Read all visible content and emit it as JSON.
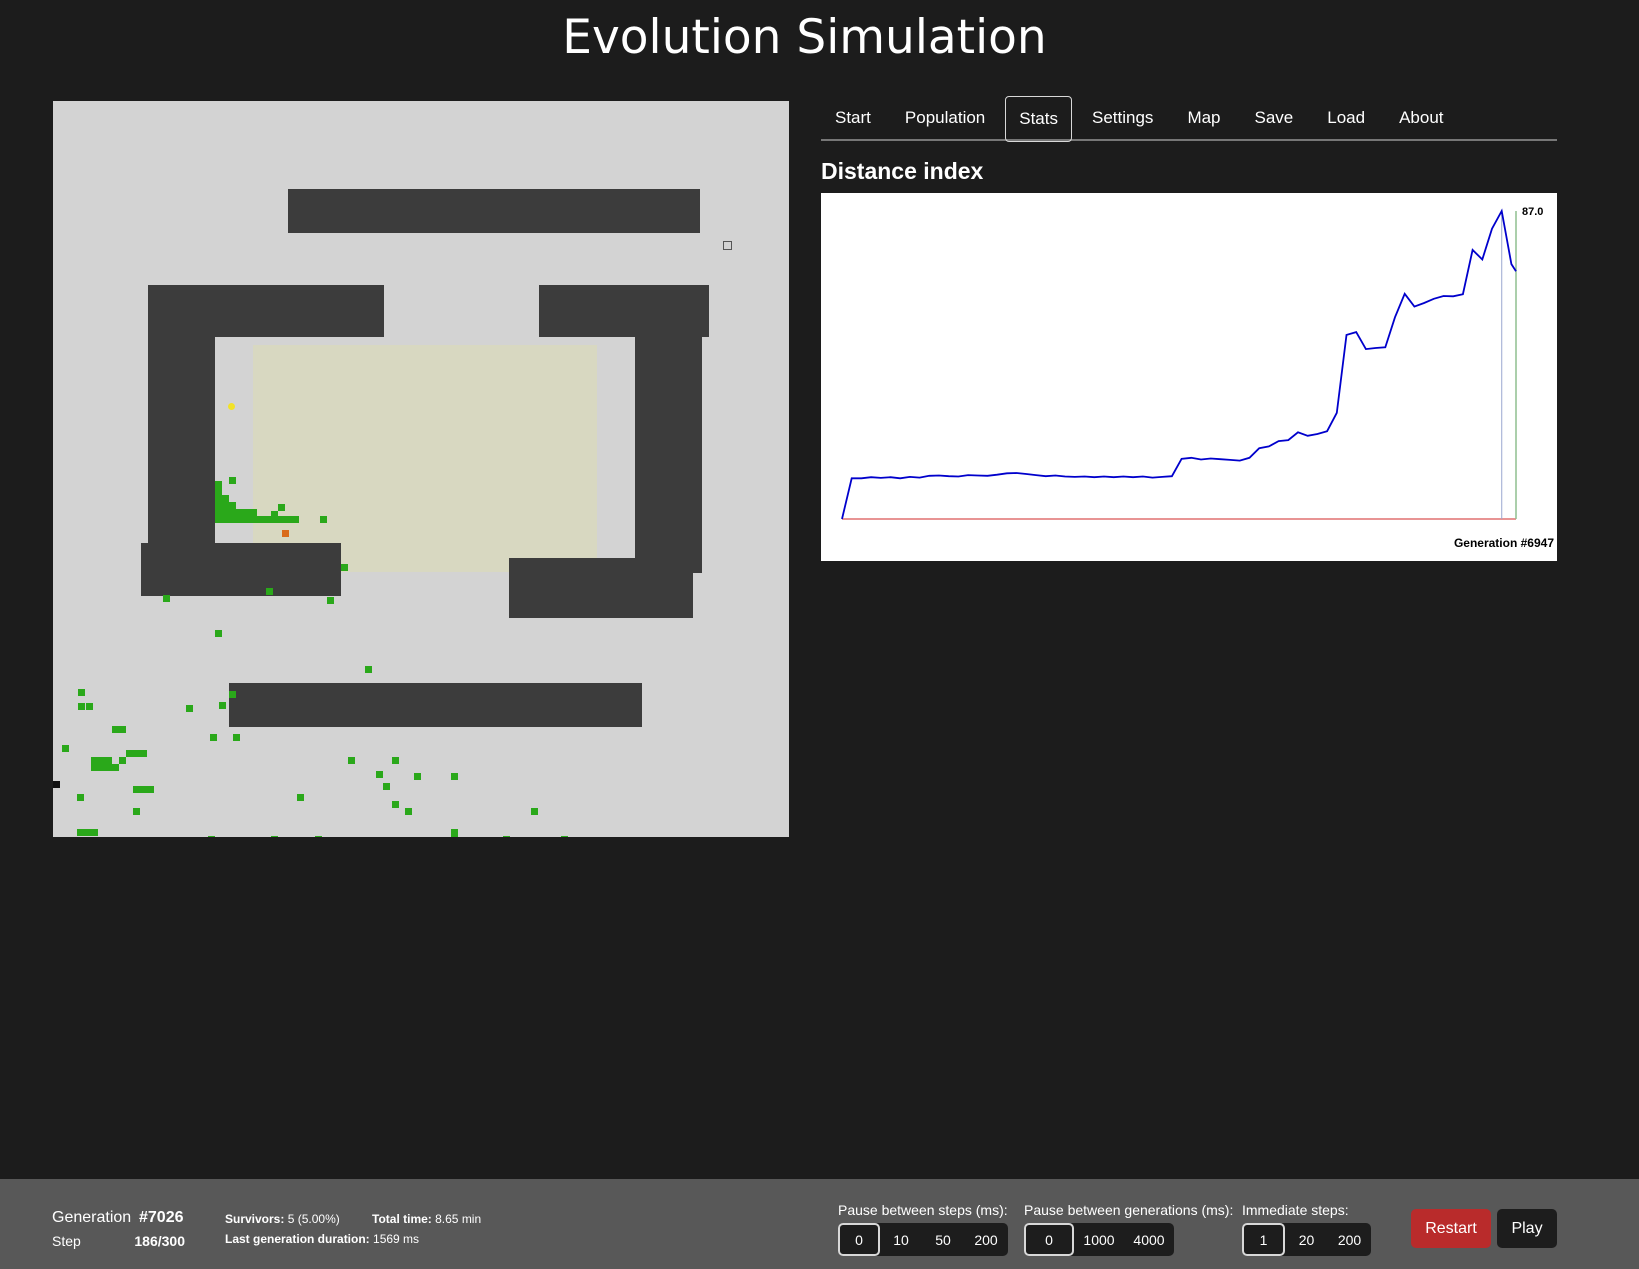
{
  "title": "Evolution Simulation",
  "tabs": [
    {
      "label": "Start"
    },
    {
      "label": "Population"
    },
    {
      "label": "Stats",
      "active": true
    },
    {
      "label": "Settings"
    },
    {
      "label": "Map"
    },
    {
      "label": "Save"
    },
    {
      "label": "Load"
    },
    {
      "label": "About"
    }
  ],
  "stats": {
    "section_title": "Distance index"
  },
  "chart_data": {
    "type": "line",
    "title": "Distance index",
    "x_end_label": "Generation #6947",
    "peak_label": "87.0",
    "x": [
      0,
      100,
      200,
      300,
      400,
      500,
      600,
      700,
      800,
      900,
      1000,
      1100,
      1200,
      1300,
      1400,
      1500,
      1600,
      1700,
      1800,
      1900,
      2000,
      2100,
      2200,
      2300,
      2400,
      2500,
      2600,
      2700,
      2800,
      2900,
      3000,
      3100,
      3200,
      3300,
      3400,
      3500,
      3600,
      3700,
      3800,
      3900,
      4000,
      4100,
      4200,
      4300,
      4400,
      4500,
      4600,
      4700,
      4800,
      4900,
      5000,
      5100,
      5200,
      5300,
      5400,
      5500,
      5600,
      5700,
      5800,
      5900,
      6000,
      6100,
      6200,
      6300,
      6400,
      6500,
      6600,
      6700,
      6800,
      6900,
      6947
    ],
    "series": [
      {
        "color": "#0000cc",
        "values": [
          0,
          11.5,
          11.5,
          11.8,
          11.6,
          11.8,
          11.5,
          11.9,
          11.7,
          12.2,
          12.3,
          12.1,
          12.0,
          12.4,
          12.3,
          12.2,
          12.5,
          12.9,
          13.0,
          12.7,
          12.4,
          12.1,
          12.3,
          12.0,
          11.9,
          12.0,
          11.8,
          12.0,
          11.8,
          12.0,
          11.8,
          12.0,
          11.7,
          11.9,
          12.1,
          17.0,
          17.3,
          16.8,
          17.1,
          16.9,
          16.7,
          16.5,
          17.3,
          20.0,
          20.5,
          22.0,
          22.3,
          24.5,
          23.5,
          24.0,
          24.8,
          30.0,
          52.0,
          52.8,
          48.0,
          48.3,
          48.5,
          57.0,
          63.6,
          60.0,
          61.0,
          62.2,
          63.0,
          62.9,
          63.5,
          76.0,
          73.3,
          82.0,
          87.0,
          72.0,
          70.0
        ]
      },
      {
        "color": "#e07070",
        "values": [
          0,
          0,
          0,
          0,
          0,
          0,
          0,
          0,
          0,
          0,
          0,
          0,
          0,
          0,
          0,
          0,
          0,
          0,
          0,
          0,
          0,
          0,
          0,
          0,
          0,
          0,
          0,
          0,
          0,
          0,
          0,
          0,
          0,
          0,
          0,
          0,
          0,
          0,
          0,
          0,
          0,
          0,
          0,
          0,
          0,
          0,
          0,
          0,
          0,
          0,
          0,
          0,
          0,
          0,
          0,
          0,
          0,
          0,
          0,
          0,
          0,
          0,
          0,
          0,
          0,
          0,
          0,
          0,
          0,
          0,
          0
        ]
      }
    ],
    "ylim": [
      0,
      87.0
    ],
    "grid": false
  },
  "footer": {
    "generation_label": "Generation",
    "generation_value": "#7026",
    "step_label": "Step",
    "step_value": "186/300",
    "survivors_label": "Survivors:",
    "survivors_value": "5 (5.00%)",
    "total_time_label": "Total time:",
    "total_time_value": "8.65 min",
    "last_gen_label": "Last generation duration:",
    "last_gen_value": "1569 ms",
    "pause_steps_label": "Pause between steps (ms):",
    "pause_steps_options": [
      "0",
      "10",
      "50",
      "200"
    ],
    "pause_gens_label": "Pause between generations (ms):",
    "pause_gens_options": [
      "0",
      "1000",
      "4000"
    ],
    "immediate_label": "Immediate steps:",
    "immediate_options": [
      "1",
      "20",
      "200"
    ],
    "restart_label": "Restart",
    "play_label": "Play"
  }
}
